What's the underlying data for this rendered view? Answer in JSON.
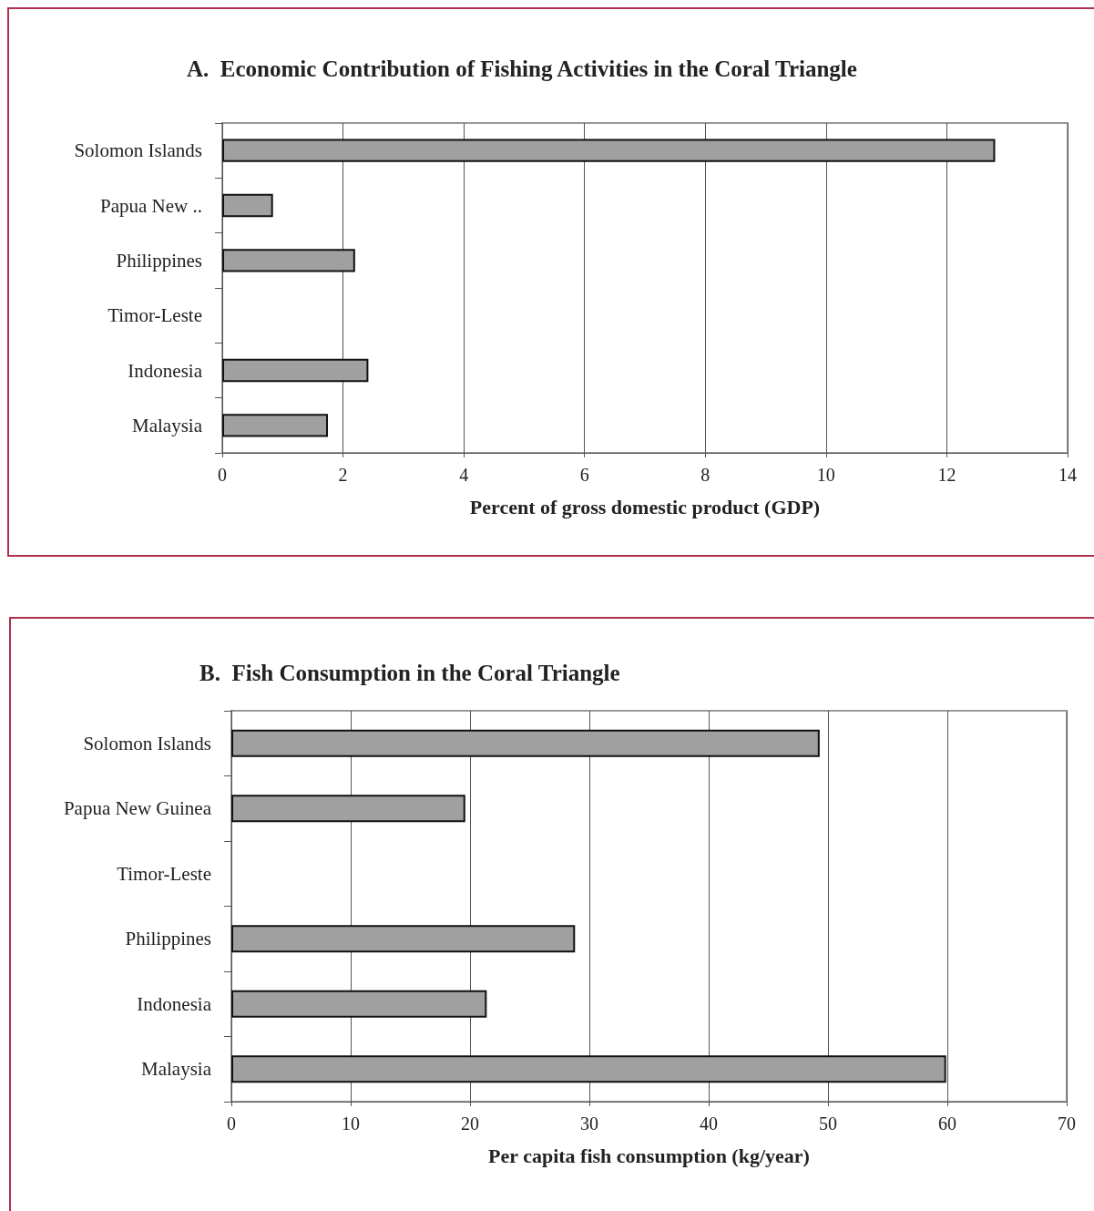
{
  "chart_data": [
    {
      "type": "bar",
      "orientation": "horizontal",
      "title": "A.  Economic Contribution of Fishing Activities in the Coral Triangle",
      "xlabel": "Percent of gross domestic product (GDP)",
      "categories": [
        "Solomon Islands",
        "Papua New ..",
        "Philippines",
        "Timor-Leste",
        "Indonesia",
        "Malaysia"
      ],
      "values": [
        12.8,
        0.84,
        2.2,
        null,
        2.42,
        1.75
      ],
      "color": "#a0a0a0",
      "xlim": [
        0,
        14
      ],
      "xticks": [
        0,
        2,
        4,
        6,
        8,
        10,
        12,
        14
      ],
      "grid": "x"
    },
    {
      "type": "bar",
      "orientation": "horizontal",
      "title": "B.  Fish Consumption in the Coral Triangle",
      "xlabel": "Per capita fish consumption (kg/year)",
      "categories": [
        "Solomon Islands",
        "Papua New Guinea",
        "Timor-Leste",
        "Philippines",
        "Indonesia",
        "Malaysia"
      ],
      "values": [
        49.3,
        19.6,
        null,
        28.8,
        21.4,
        59.9
      ],
      "color": "#a0a0a0",
      "xlim": [
        0,
        70
      ],
      "xticks": [
        0,
        10,
        20,
        30,
        40,
        50,
        60,
        70
      ],
      "grid": "x"
    }
  ]
}
